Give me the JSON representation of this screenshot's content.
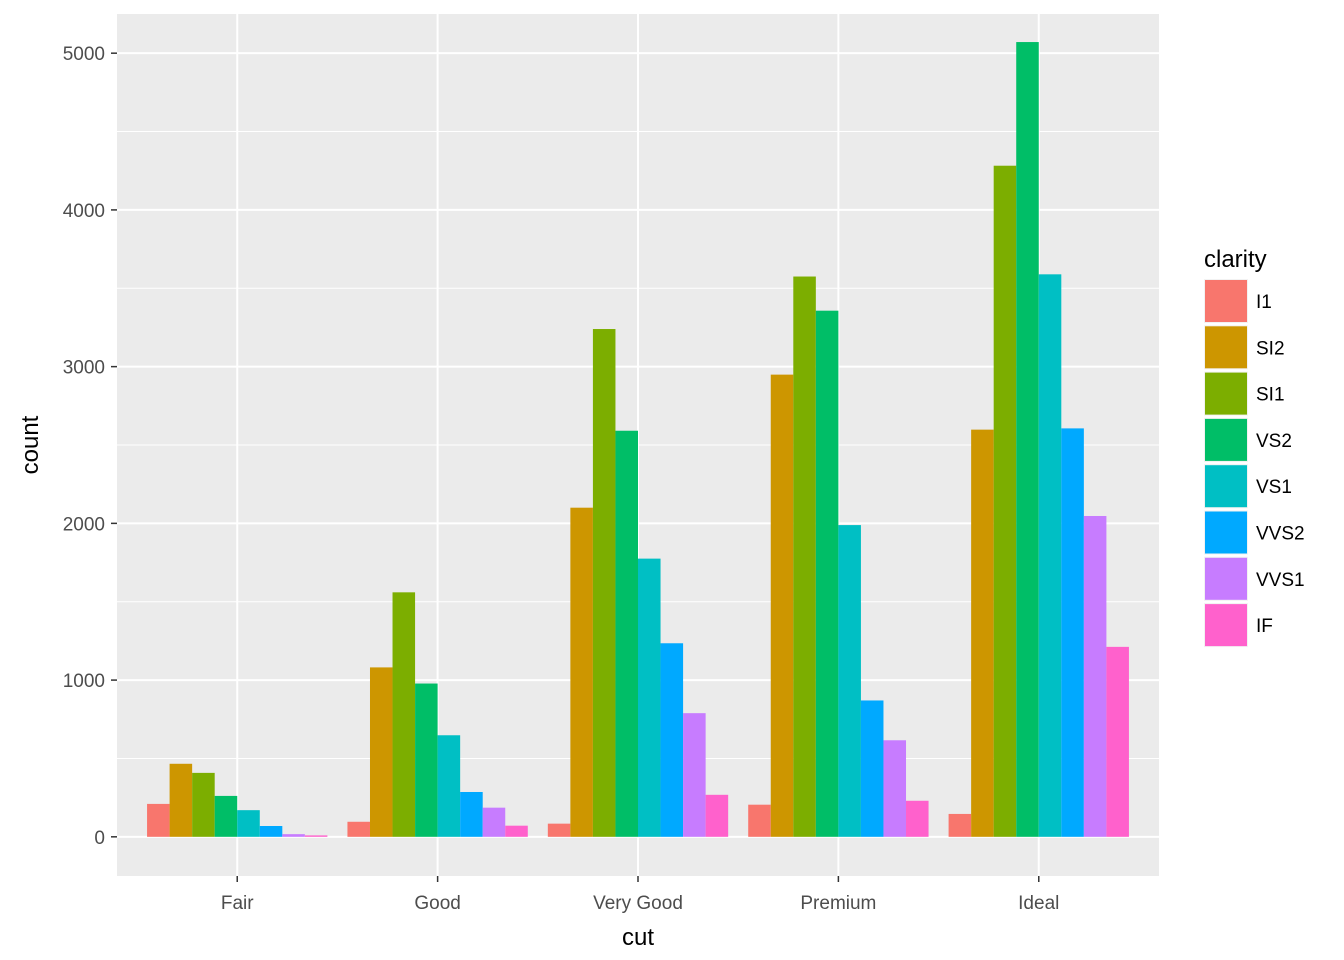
{
  "chart_data": {
    "type": "bar",
    "title": "",
    "xlabel": "cut",
    "ylabel": "count",
    "categories": [
      "Fair",
      "Good",
      "Very Good",
      "Premium",
      "Ideal"
    ],
    "ylim": [
      -250,
      5250
    ],
    "yticks": [
      0,
      1000,
      2000,
      3000,
      4000,
      5000
    ],
    "grid": true,
    "legend": {
      "title": "clarity",
      "position": "right"
    },
    "series": [
      {
        "name": "I1",
        "color": "#F8766D",
        "values": [
          210,
          96,
          84,
          205,
          146
        ]
      },
      {
        "name": "SI2",
        "color": "#CD9600",
        "values": [
          466,
          1081,
          2100,
          2949,
          2598
        ]
      },
      {
        "name": "SI1",
        "color": "#7CAE00",
        "values": [
          408,
          1560,
          3240,
          3575,
          4282
        ]
      },
      {
        "name": "VS2",
        "color": "#00BE67",
        "values": [
          261,
          978,
          2591,
          3357,
          5071
        ]
      },
      {
        "name": "VS1",
        "color": "#00BFC4",
        "values": [
          170,
          648,
          1775,
          1989,
          3589
        ]
      },
      {
        "name": "VVS2",
        "color": "#00A9FF",
        "values": [
          69,
          286,
          1235,
          870,
          2606
        ]
      },
      {
        "name": "VVS1",
        "color": "#C77CFF",
        "values": [
          17,
          186,
          789,
          616,
          2047
        ]
      },
      {
        "name": "IF",
        "color": "#FF61CC",
        "values": [
          9,
          71,
          268,
          230,
          1212
        ]
      }
    ]
  }
}
